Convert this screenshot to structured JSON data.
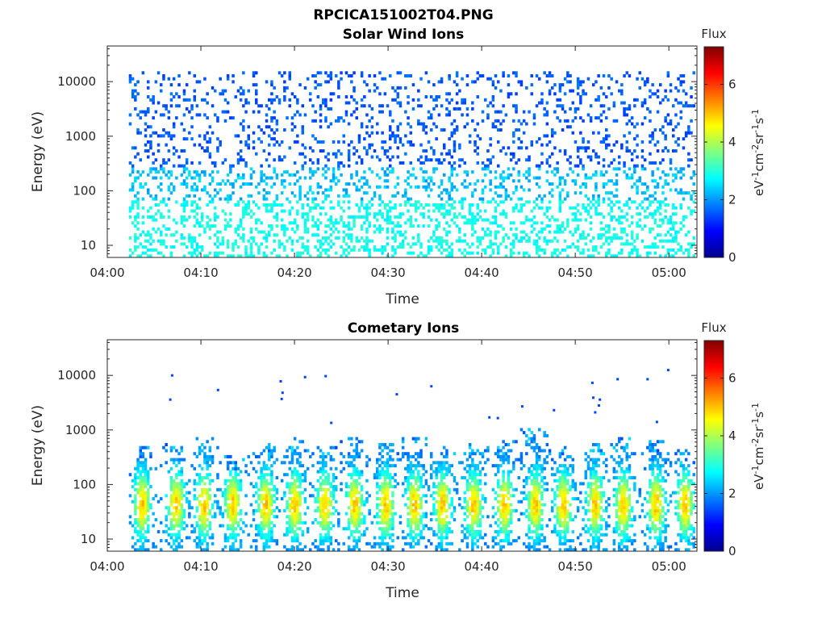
{
  "figure": {
    "title": "RPCICA151002T04.PNG",
    "colorbar_label": "Flux",
    "colorbar_unit_base": [
      "eV",
      "cm",
      "sr",
      "s"
    ],
    "colorbar_unit_exponents": [
      "-1",
      "-2",
      "-1",
      "-1"
    ]
  },
  "colors": {
    "axis": "#262626",
    "colormap": "jet"
  },
  "chart_data": [
    {
      "type": "heatmap",
      "title": "Solar Wind Ions",
      "xlabel": "Time",
      "ylabel": "Energy (eV)",
      "yscale": "log",
      "ylim": [
        6,
        45000
      ],
      "xlim": [
        "04:00",
        "05:03"
      ],
      "x_ticks": [
        "04:00",
        "04:10",
        "04:20",
        "04:30",
        "04:40",
        "04:50",
        "05:00"
      ],
      "y_ticks": [
        "10",
        "100",
        "1000",
        "10000"
      ],
      "data_xlim_minutes": [
        2.3,
        62.8
      ],
      "colorbar": {
        "label": "Flux",
        "range": [
          0,
          7.3
        ],
        "ticks": [
          "0",
          "2",
          "4",
          "6"
        ]
      },
      "pattern": "sparse blue-cyan counts across all energies 10-15000 eV, values ~1.5-2.8; cyan band near 10-100 eV",
      "typical_value_high_energy": 1.5,
      "typical_value_low_energy": 2.8
    },
    {
      "type": "heatmap",
      "title": "Cometary Ions",
      "xlabel": "Time",
      "ylabel": "Energy (eV)",
      "yscale": "log",
      "ylim": [
        6,
        45000
      ],
      "xlim": [
        "04:00",
        "05:03"
      ],
      "x_ticks": [
        "04:00",
        "04:10",
        "04:20",
        "04:30",
        "04:40",
        "04:50",
        "05:00"
      ],
      "y_ticks": [
        "10",
        "100",
        "1000",
        "10000"
      ],
      "data_xlim_minutes": [
        2.3,
        62.8
      ],
      "colorbar": {
        "label": "Flux",
        "range": [
          0,
          7.3
        ],
        "ticks": [
          "0",
          "2",
          "4",
          "6"
        ]
      },
      "pattern": "periodic bursts from ~8 eV up to ~300-900 eV, peak flux ~5 near 30-50 eV; sparse isolated counts above 1000 eV",
      "burst_centers_minutes": [
        3.6,
        7.2,
        10.2,
        13.3,
        16.8,
        19.9,
        23.1,
        26.3,
        29.6,
        32.7,
        35.7,
        39.0,
        42.3,
        45.6,
        48.6,
        52.0,
        55.0,
        58.5,
        61.6
      ],
      "burst_peak_energy_ev": [
        40,
        40,
        40,
        40,
        40,
        40,
        40,
        40,
        40,
        40,
        40,
        40,
        40,
        40,
        40,
        40,
        40,
        40,
        40
      ],
      "burst_top_energy_ev": [
        400,
        500,
        600,
        300,
        500,
        600,
        400,
        600,
        500,
        600,
        400,
        500,
        550,
        900,
        400,
        500,
        600,
        550,
        350
      ],
      "peak_flux": 5.0,
      "sparse_points": [
        {
          "t": 6.8,
          "e": 10000
        },
        {
          "t": 6.6,
          "e": 3600
        },
        {
          "t": 11.7,
          "e": 5400
        },
        {
          "t": 18.4,
          "e": 7800
        },
        {
          "t": 18.6,
          "e": 4800
        },
        {
          "t": 18.5,
          "e": 3700
        },
        {
          "t": 21.0,
          "e": 9300
        },
        {
          "t": 23.2,
          "e": 9700
        },
        {
          "t": 23.8,
          "e": 1350
        },
        {
          "t": 30.8,
          "e": 4500
        },
        {
          "t": 34.5,
          "e": 6300
        },
        {
          "t": 40.7,
          "e": 1700
        },
        {
          "t": 41.6,
          "e": 1650
        },
        {
          "t": 44.2,
          "e": 2700
        },
        {
          "t": 47.6,
          "e": 2300
        },
        {
          "t": 51.7,
          "e": 7300
        },
        {
          "t": 51.8,
          "e": 3900
        },
        {
          "t": 52.5,
          "e": 3600
        },
        {
          "t": 52.0,
          "e": 2100
        },
        {
          "t": 52.4,
          "e": 2800
        },
        {
          "t": 54.4,
          "e": 8500
        },
        {
          "t": 57.6,
          "e": 8500
        },
        {
          "t": 59.8,
          "e": 12500
        },
        {
          "t": 58.6,
          "e": 1400
        }
      ]
    }
  ]
}
